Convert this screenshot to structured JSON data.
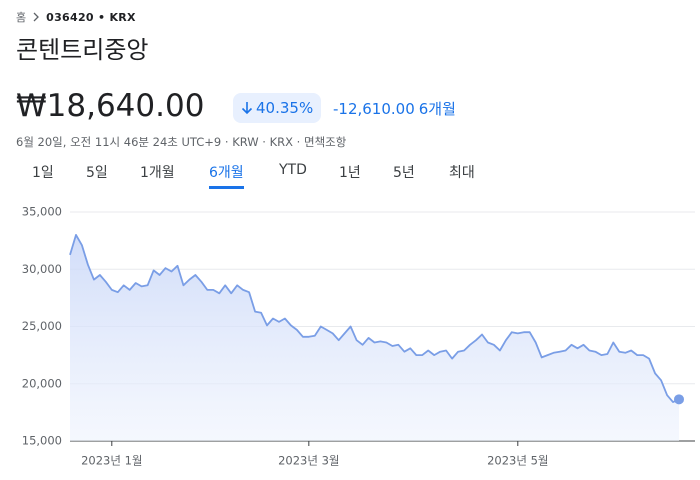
{
  "breadcrumb": {
    "home": "홈",
    "ticker": "036420 • KRX"
  },
  "title": "콘텐트리중앙",
  "price": "₩18,640.00",
  "change_percent": "40.35%",
  "change_amount": "-12,610.00",
  "change_period": "6개월",
  "timestamp": "6월 20일, 오전 11시 46분 24초 UTC+9 · KRW · KRX · 면책조항",
  "tabs": [
    "1일",
    "5일",
    "1개월",
    "6개월",
    "YTD",
    "1년",
    "5년",
    "최대"
  ],
  "selected_tab": 3,
  "chart_data": {
    "type": "line",
    "color": "#7a9ee6",
    "values": [
      31250,
      33000,
      32100,
      30400,
      29100,
      29500,
      28900,
      28200,
      28000,
      28600,
      28200,
      28800,
      28500,
      28600,
      29900,
      29500,
      30100,
      29800,
      30300,
      28600,
      29100,
      29500,
      28900,
      28200,
      28200,
      27900,
      28600,
      27900,
      28600,
      28200,
      28000,
      26300,
      26200,
      25100,
      25700,
      25400,
      25700,
      25100,
      24700,
      24100,
      24100,
      24200,
      25000,
      24700,
      24400,
      23800,
      24400,
      25000,
      23800,
      23400,
      24000,
      23600,
      23700,
      23600,
      23300,
      23400,
      22800,
      23100,
      22500,
      22500,
      22900,
      22500,
      22800,
      22900,
      22200,
      22800,
      22900,
      23400,
      23800,
      24300,
      23600,
      23400,
      22900,
      23800,
      24500,
      24400,
      24500,
      24500,
      23600,
      22300,
      22500,
      22700,
      22800,
      22900,
      23400,
      23100,
      23400,
      22900,
      22800,
      22500,
      22600,
      23600,
      22800,
      22700,
      22900,
      22500,
      22500,
      22200,
      20900,
      20300,
      19000,
      18400,
      18640
    ],
    "xlim": [
      0,
      102
    ],
    "xticks": [
      {
        "value": 7,
        "label": "2023년 1월"
      },
      {
        "value": 40,
        "label": "2023년 3월"
      },
      {
        "value": 75,
        "label": "2023년 5월"
      }
    ],
    "ylim": [
      15000,
      35000
    ],
    "yticks": [
      {
        "value": 15000,
        "label": "15,000"
      },
      {
        "value": 20000,
        "label": "20,000"
      },
      {
        "value": 25000,
        "label": "25,000"
      },
      {
        "value": 30000,
        "label": "30,000"
      },
      {
        "value": 35000,
        "label": "35,000"
      }
    ],
    "grid": true
  }
}
